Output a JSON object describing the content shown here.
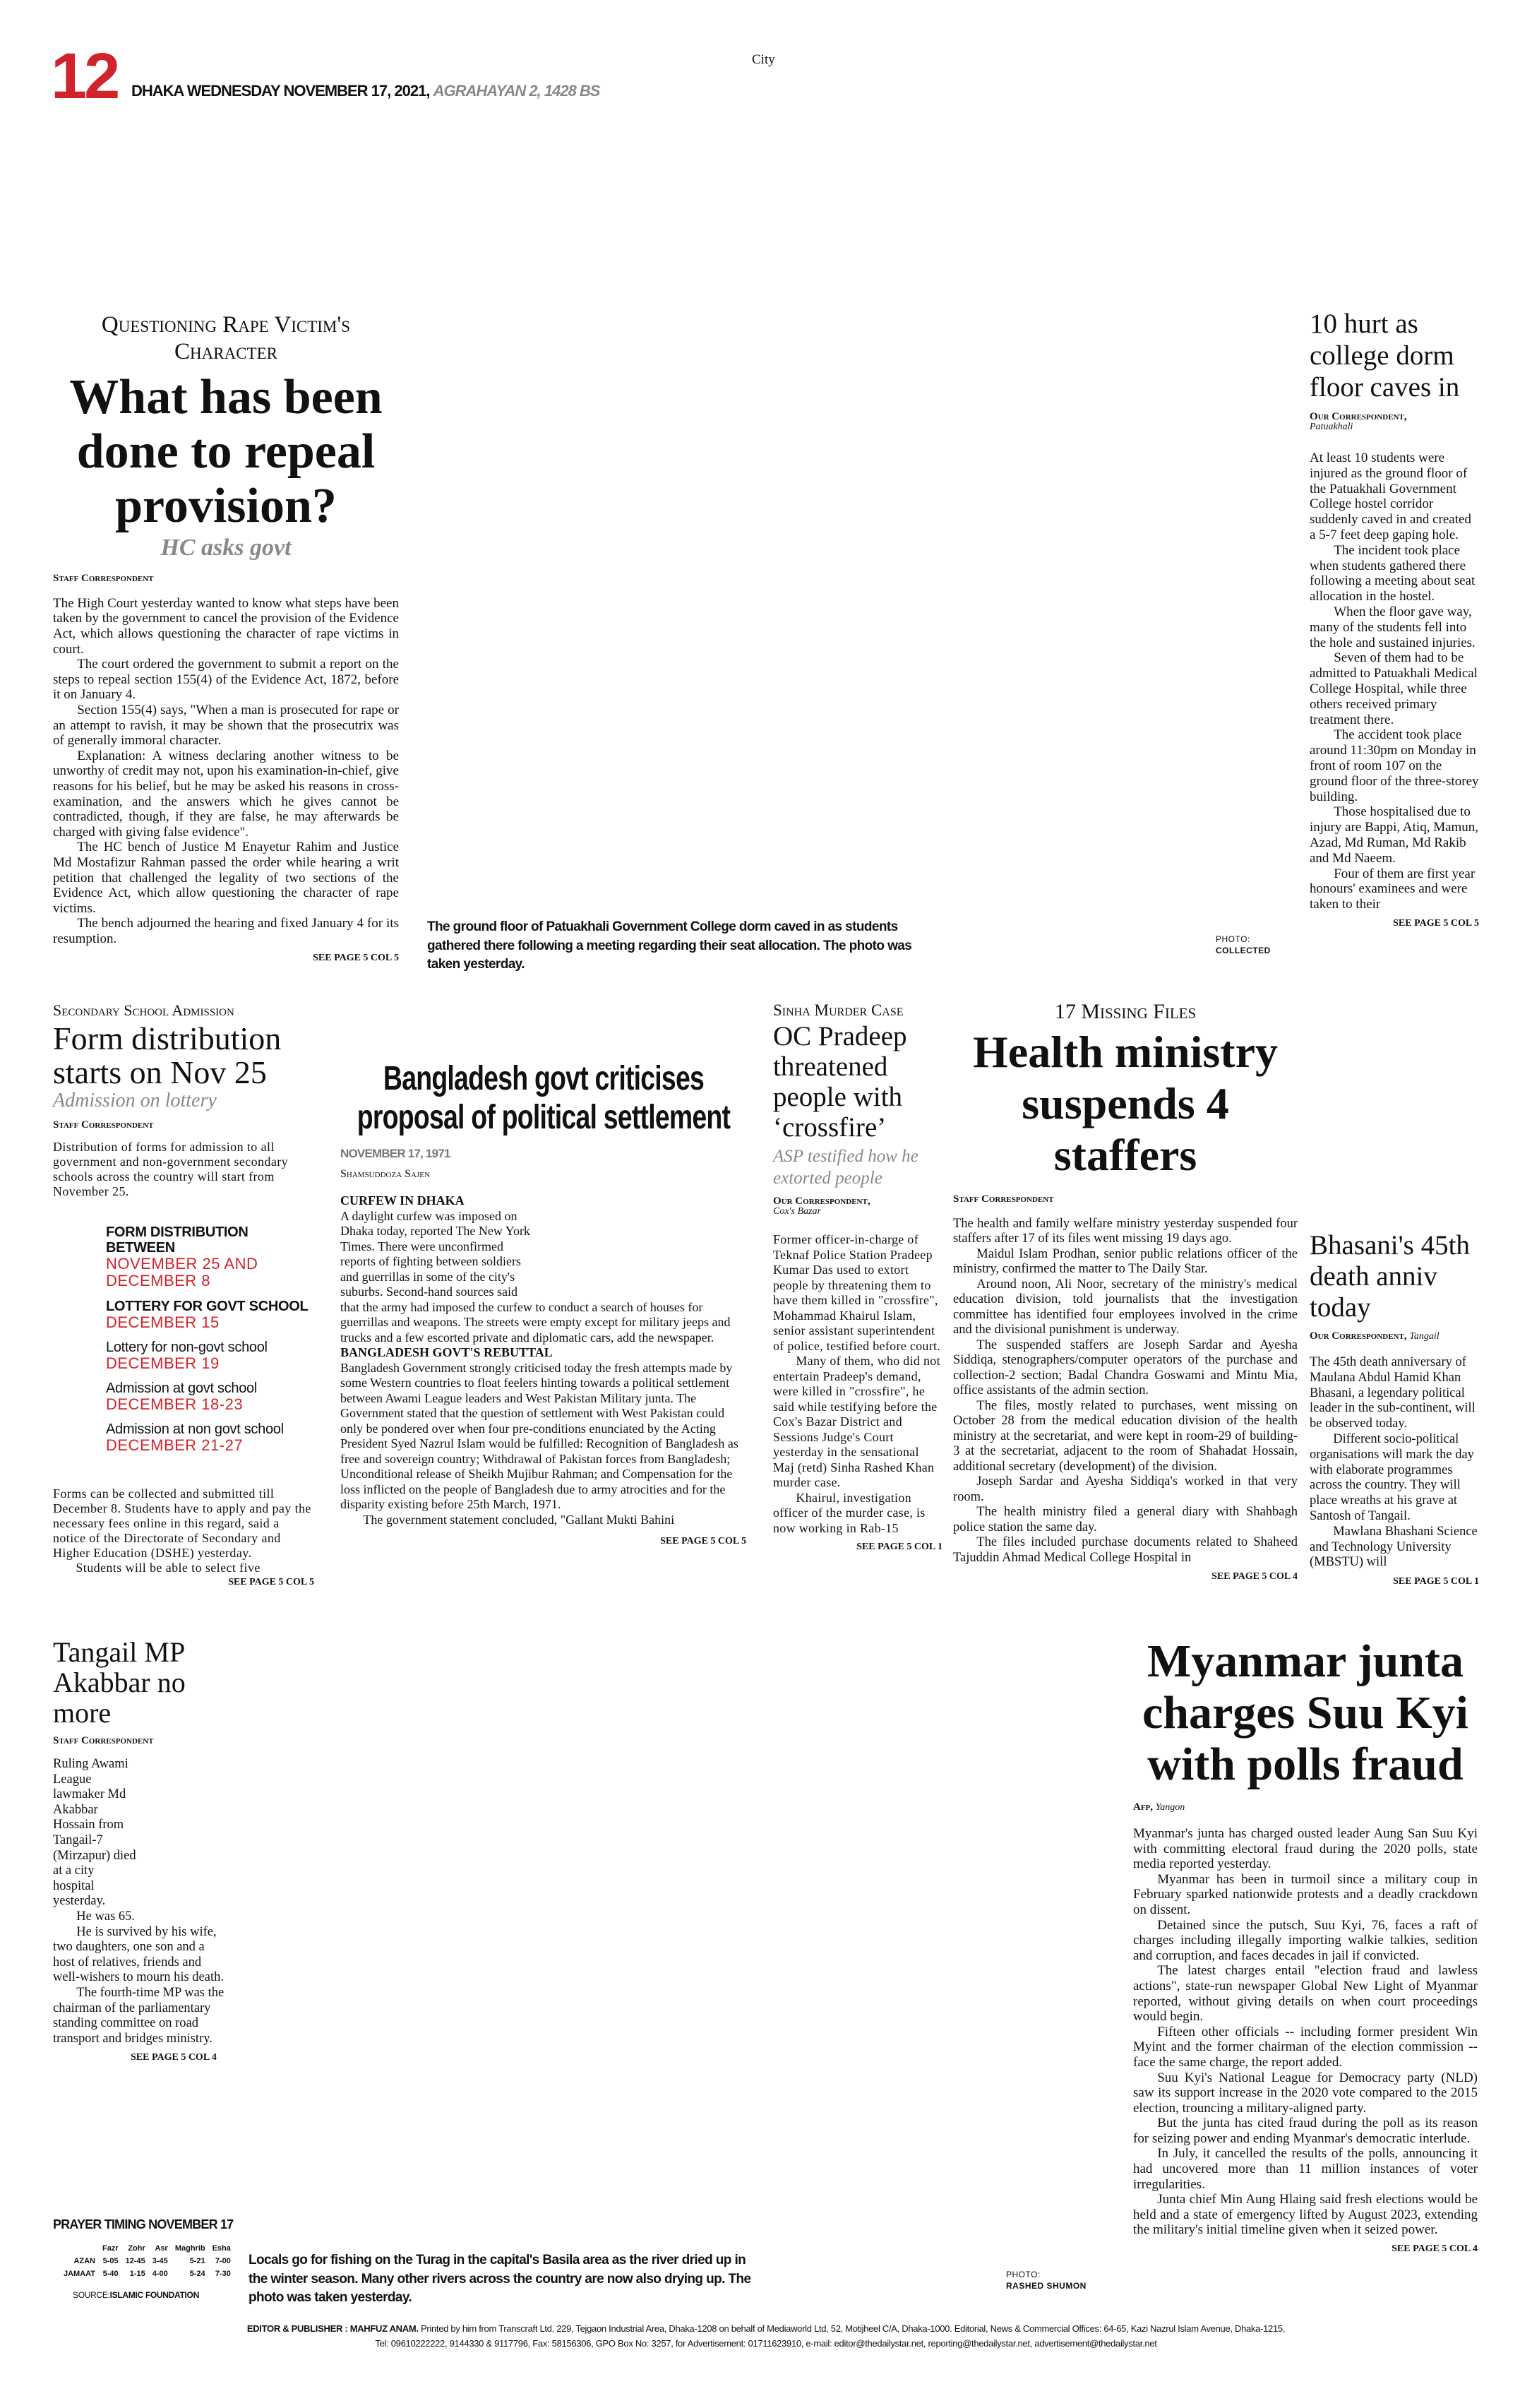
{
  "masthead": {
    "page_number": "12",
    "dateline": "DHAKA WEDNESDAY NOVEMBER 17, 2021,",
    "bangla_date": "AGRAHAYAN 2, 1428 BS",
    "section": "City",
    "accent_color": "#d2232a"
  },
  "rape_article": {
    "kicker": "Questioning Rape Victim's Character",
    "headline": "What has been done to repeal provision?",
    "subhead": "HC asks govt",
    "byline": "Staff Correspondent",
    "paragraphs": [
      "The High Court yesterday wanted to know what steps have been taken by the government to cancel the provision of the Evidence Act, which allows questioning the character of rape victims in court.",
      "The court ordered the government to submit a report on the steps to repeal section 155(4) of the Evidence Act, 1872, before it on January 4.",
      "Section 155(4) says, \"When a man is prosecuted for rape or an attempt to ravish, it may be shown that the prosecutrix was of generally immoral character.",
      "Explanation: A witness declaring another witness to be unworthy of credit may not, upon his examination-in-chief, give reasons for his belief, but he may be asked his reasons in cross-examination, and the answers which he gives cannot be contradicted, though, if they are false, he may afterwards be charged with giving false evidence\".",
      "The HC bench of Justice M Enayetur Rahim and Justice Md Mostafizur Rahman passed the order while hearing a writ petition that challenged the legality of two sections of the Evidence Act, which allow questioning the character of rape victims.",
      "The bench adjourned the hearing and fixed January 4 for its resumption."
    ],
    "continued": "SEE PAGE 5 COL 5"
  },
  "dorm_photo": {
    "caption": "The ground floor of Patuakhali Government College dorm caved in as students gathered there following a meeting regarding their seat allocation. The photo was taken yesterday.",
    "credit_label": "PHOTO:",
    "credit_name": "COLLECTED"
  },
  "dorm_article": {
    "headline": "10 hurt as college dorm floor caves in",
    "byline": "Our Correspondent,",
    "location": "Patuakhali",
    "paragraphs": [
      "At least 10 students were injured as the ground floor of the Patuakhali Government College hostel corridor suddenly caved in and created a 5-7 feet deep gaping hole.",
      "The incident took place when students gathered there following a meeting about seat allocation in the hostel.",
      "When the floor gave way, many of the students fell into the hole and sustained injuries.",
      "Seven of them had to be admitted to Patuakhali Medical College Hospital, while three others received primary treatment there.",
      "The accident took place around 11:30pm on Monday in front of room 107 on the ground floor of the three-storey building.",
      "Those hospitalised due to injury are Bappi, Atiq, Mamun, Azad, Md Ruman, Md Rakib and Md Naeem.",
      "Four of them are first year honours' examinees and were taken to their"
    ],
    "continued": "SEE PAGE 5 COL 5"
  },
  "admission_article": {
    "kicker": "Secondary School Admission",
    "headline": "Form distribution starts on Nov 25",
    "subhead": "Admission on lottery",
    "byline": "Staff Correspondent",
    "intro": "Distribution of forms for admission to all government and non-government secondary schools across the country will start from November 25.",
    "key_dates": [
      {
        "label": "FORM DISTRIBUTION BETWEEN",
        "value": "NOVEMBER 25 AND DECEMBER 8",
        "bold": true
      },
      {
        "label": "LOTTERY FOR GOVT SCHOOL",
        "value": "DECEMBER 15",
        "bold": true
      },
      {
        "label": "Lottery for non-govt school",
        "value": "DECEMBER 19",
        "bold": false
      },
      {
        "label": "Admission at govt school",
        "value": "DECEMBER 18-23",
        "bold": false
      },
      {
        "label": "Admission at non govt school",
        "value": "DECEMBER 21-27",
        "bold": false
      }
    ],
    "paragraphs": [
      "Forms can be collected and submitted till December 8. Students have to apply and pay the necessary fees online in this regard, said a notice of the Directorate of Secondary and Higher Education (DSHE) yesterday.",
      "Students will be able to select five"
    ],
    "continued": "SEE PAGE 5 COL 5"
  },
  "history_article": {
    "headline": "Bangladesh govt criticises proposal of political settlement",
    "date": "NOVEMBER 17, 1971",
    "byline": "Shamsuddoza Sajen",
    "sections": [
      {
        "heading": "CURFEW IN DHAKA",
        "text": "A daylight curfew was imposed on Dhaka today, reported The New York Times. There were unconfirmed reports of fighting between soldiers and guerrillas in some of the city's suburbs. Second-hand sources said that the army had imposed the curfew to conduct a search of houses for guerrillas and weapons. The streets were empty except for military jeeps and trucks and a few escorted private and diplomatic cars, add the newspaper."
      },
      {
        "heading": "BANGLADESH GOVT'S REBUTTAL",
        "text": "Bangladesh Government strongly criticised today the fresh attempts made by some Western countries to float feelers hinting towards a political settlement between Awami League leaders and West Pakistan Military junta. The Government stated that the question of settlement with West Pakistan could only be pondered over when four pre-conditions enunciated by the Acting President Syed Nazrul Islam would be fulfilled: Recognition of Bangladesh as free and sovereign country; Withdrawal of Pakistan forces from Bangladesh; Unconditional release of Sheikh Mujibur Rahman; and Compensation for the loss inflicted on the people of Bangladesh due to army atrocities and for the disparity existing before 25th March, 1971."
      }
    ],
    "closing": "The government statement concluded, \"Gallant Mukti Bahini",
    "continued": "SEE PAGE 5 COL 5"
  },
  "sinha_article": {
    "kicker": "Sinha Murder Case",
    "headline": "OC Pradeep threatened people with ‘crossfire’",
    "subhead": "ASP testified how he extorted people",
    "byline": "Our Correspondent,",
    "location": "Cox's Bazar",
    "paragraphs": [
      "Former officer-in-charge of Teknaf Police Station Pradeep Kumar Das used to extort people by threatening them to have them killed in \"crossfire\", Mohammad Khairul Islam, senior assistant superintendent of police, testified before court.",
      "Many of them, who did not entertain Pradeep's demand, were killed in \"crossfire\", he said while testifying before the Cox's Bazar District and Sessions Judge's Court yesterday in the sensational Maj (retd) Sinha Rashed Khan murder case.",
      "Khairul, investigation officer of the murder case, is now working in Rab-15"
    ],
    "continued": "SEE PAGE 5 COL 1"
  },
  "health_article": {
    "kicker": "17 Missing Files",
    "headline": "Health ministry suspends 4 staffers",
    "byline": "Staff Correspondent",
    "paragraphs": [
      "The health and family welfare ministry yesterday suspended four staffers after 17 of its files went missing 19 days ago.",
      "Maidul Islam Prodhan, senior public relations officer of the ministry, confirmed the matter to The Daily Star.",
      "Around noon, Ali Noor, secretary of the ministry's medical education division, told journalists that the investigation committee has identified four employees involved in the crime and the divisional punishment is underway.",
      "The suspended staffers are Joseph Sardar and Ayesha Siddiqa, stenographers/computer operators of the purchase and collection-2 section; Badal Chandra Goswami and Mintu Mia, office assistants of the admin section.",
      "The files, mostly related to purchases, went missing on October 28 from the medical education division of the health ministry at the secretariat, and were kept in room-29 of building-3 at the secretariat, adjacent to the room of Shahadat Hossain, additional secretary (development) of the division.",
      "Joseph Sardar and Ayesha Siddiqa's worked in that very room.",
      "The health ministry filed a general diary with Shahbagh police station the same day.",
      "The files included purchase documents related to Shaheed Tajuddin Ahmad Medical College Hospital in"
    ],
    "continued": "SEE PAGE 5 COL 4"
  },
  "bhasani_article": {
    "headline": "Bhasani's 45th death anniv today",
    "byline": "Our Correspondent,",
    "location": "Tangail",
    "paragraphs": [
      "The 45th death anniversary of Maulana Abdul Hamid Khan Bhasani, a legendary political leader in the sub-continent, will be observed today.",
      "Different socio-political organisations will mark the day with elaborate programmes across the country. They will place wreaths at his grave at Santosh of Tangail.",
      "Mawlana Bhashani Science and Technology University (MBSTU) will"
    ],
    "continued": "SEE PAGE 5 COL 1"
  },
  "tangail_article": {
    "headline": "Tangail MP Akabbar no more",
    "byline": "Staff Correspondent",
    "paragraphs": [
      "Ruling Awami League lawmaker Md Akabbar Hossain from Tangail-7 (Mirzapur) died at a city hospital yesterday.",
      "He was 65.",
      "He is survived by his wife, two daughters, one son and a host of relatives, friends and well-wishers to mourn his death.",
      "The fourth-time MP was the chairman of the parliamentary standing committee on road transport and bridges ministry."
    ],
    "continued": "SEE PAGE 5 COL 4"
  },
  "myanmar_article": {
    "headline": "Myanmar junta charges Suu Kyi with polls fraud",
    "byline": "Afp,",
    "location": "Yangon",
    "paragraphs": [
      "Myanmar's junta has charged ousted leader Aung San Suu Kyi with committing electoral fraud during the 2020 polls, state media reported yesterday.",
      "Myanmar has been in turmoil since a military coup in February sparked nationwide protests and a deadly crackdown on dissent.",
      "Detained since the putsch, Suu Kyi, 76, faces a raft of charges including illegally importing walkie talkies, sedition and corruption, and faces decades in jail if convicted.",
      "The latest charges entail \"election fraud and lawless actions\", state-run newspaper Global New Light of Myanmar reported, without giving details on when court proceedings would begin.",
      "Fifteen other officials -- including former president Win Myint and the former chairman of the election commission -- face the same charge, the report added.",
      "Suu Kyi's National League for Democracy party (NLD) saw its support increase in the 2020 vote compared to the 2015 election, trouncing a military-aligned party.",
      "But the junta has cited fraud during the poll as its reason for seizing power and ending Myanmar's democratic interlude.",
      "In July, it cancelled the results of the polls, announcing it had uncovered more than 11 million instances of voter irregularities.",
      "Junta chief Min Aung Hlaing said fresh elections would be held and a state of emergency lifted by August 2023, extending the military's initial timeline given when it seized power."
    ],
    "continued": "SEE PAGE 5 COL 4"
  },
  "prayer_timing": {
    "title": "PRAYER TIMING NOVEMBER 17",
    "columns": [
      "",
      "Fazr",
      "Zohr",
      "Asr",
      "Maghrib",
      "Esha"
    ],
    "rows": [
      [
        "AZAN",
        "5-05",
        "12-45",
        "3-45",
        "5-21",
        "7-00"
      ],
      [
        "JAMAAT",
        "5-40",
        "1-15",
        "4-00",
        "5-24",
        "7-30"
      ]
    ],
    "source_label": "SOURCE:",
    "source_name": "ISLAMIC FOUNDATION"
  },
  "river_photo": {
    "caption": "Locals go for fishing on the Turag in the capital's Basila area as the river dried up in the winter season. Many other rivers across the country are now also drying up. The photo was taken yesterday.",
    "credit_label": "PHOTO:",
    "credit_name": "RASHED SHUMON"
  },
  "footer": {
    "line1_bold": "EDITOR & PUBLISHER : MAHFUZ ANAM.",
    "line1": "Printed by him from Transcraft Ltd, 229, Tejgaon Industrial Area, Dhaka-1208 on behalf of Mediaworld Ltd, 52, Motijheel C/A, Dhaka-1000. Editorial, News & Commercial Offices: 64-65, Kazi Nazrul Islam Avenue, Dhaka-1215,",
    "line2": "Tel: 09610222222, 9144330 & 9117796, Fax: 58156306, GPO Box No: 3257, for Advertisement: 01711623910, e-mail: editor@thedailystar.net, reporting@thedailystar.net, advertisement@thedailystar.net"
  }
}
